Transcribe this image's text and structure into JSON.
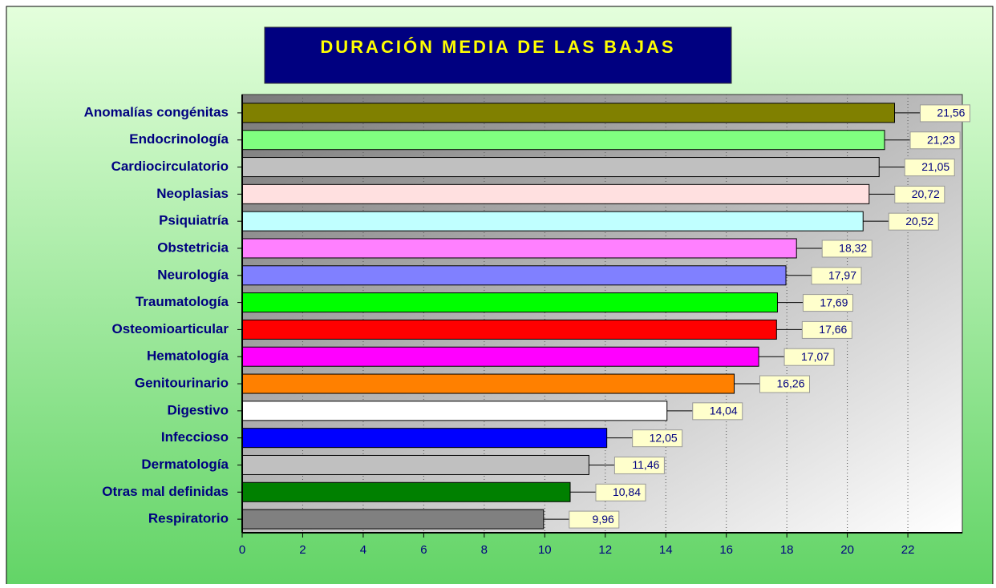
{
  "chart_data": {
    "type": "hbar",
    "title": "DURACIÓN MEDIA DE LAS BAJAS",
    "categories": [
      "Anomalías congénitas",
      "Endocrinología",
      "Cardiocirculatorio",
      "Neoplasias",
      "Psiquiatría",
      "Obstetricia",
      "Neurología",
      "Traumatología",
      "Osteomioarticular",
      "Hematología",
      "Genitourinario",
      "Digestivo",
      "Infeccioso",
      "Dermatología",
      "Otras mal definidas",
      "Respiratorio"
    ],
    "values": [
      21.56,
      21.23,
      21.05,
      20.72,
      20.52,
      18.32,
      17.97,
      17.69,
      17.66,
      17.07,
      16.26,
      14.04,
      12.05,
      11.46,
      10.84,
      9.96
    ],
    "value_labels": [
      "21,56",
      "21,23",
      "21,05",
      "20,72",
      "20,52",
      "18,32",
      "17,97",
      "17,69",
      "17,66",
      "17,07",
      "16,26",
      "14,04",
      "12,05",
      "11,46",
      "10,84",
      "9,96"
    ],
    "colors": [
      "#808000",
      "#80ff80",
      "#c0c0c0",
      "#ffe0e0",
      "#c0ffff",
      "#ff80ff",
      "#8080ff",
      "#00ff00",
      "#ff0000",
      "#ff00ff",
      "#ff8000",
      "#ffffff",
      "#0000ff",
      "#c0c0c0",
      "#008000",
      "#808080"
    ],
    "xlim": [
      0,
      23.8
    ],
    "xticks": [
      0,
      2,
      4,
      6,
      8,
      10,
      12,
      14,
      16,
      18,
      20,
      22
    ],
    "grid": true
  }
}
